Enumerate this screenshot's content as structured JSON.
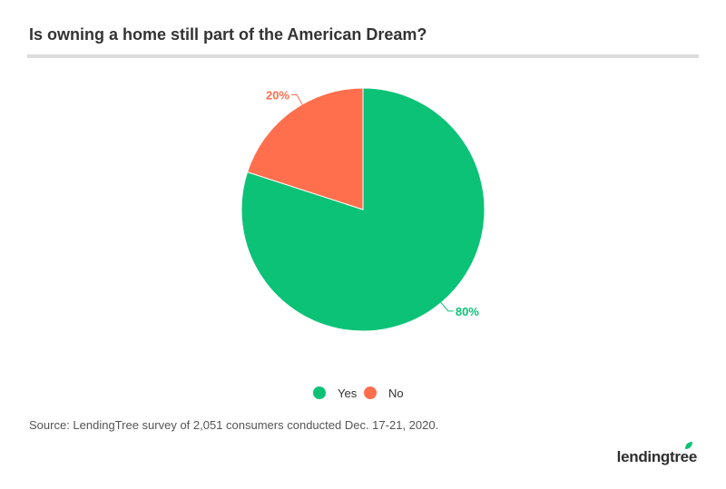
{
  "title": "Is owning a home still part of the American Dream?",
  "source": "Source: LendingTree survey of 2,051 consumers conducted Dec. 17-21, 2020.",
  "logo_text": "lendingtree",
  "colors": {
    "yes": "#0bc277",
    "no": "#ff6f4e",
    "label_text": "#333333"
  },
  "chart_data": {
    "type": "pie",
    "title": "Is owning a home still part of the American Dream?",
    "categories": [
      "Yes",
      "No"
    ],
    "values": [
      80,
      20
    ],
    "labels": [
      "80%",
      "20%"
    ],
    "legend": "bottom-center"
  },
  "legend": {
    "items": [
      {
        "label": "Yes",
        "color": "#0bc277"
      },
      {
        "label": "No",
        "color": "#ff6f4e"
      }
    ]
  }
}
